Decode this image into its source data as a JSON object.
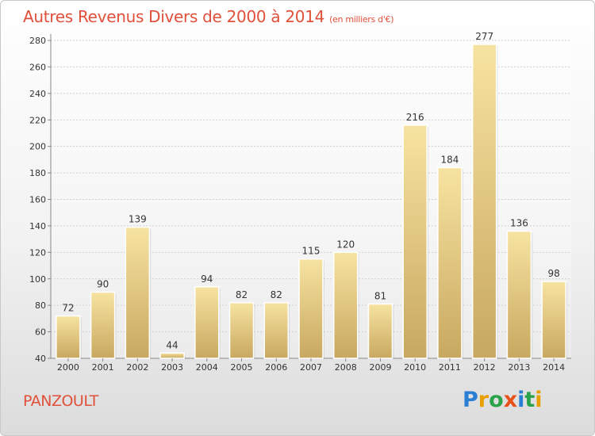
{
  "title": {
    "main": "Autres Revenus Divers de 2000 à 2014",
    "unit": "(en milliers d'€)"
  },
  "place": "PANZOULT",
  "logo": {
    "letters": [
      {
        "ch": "P",
        "color": "#2a7fd4"
      },
      {
        "ch": "r",
        "color": "#e8a000"
      },
      {
        "ch": "o",
        "color": "#2aa34a"
      },
      {
        "ch": "x",
        "color": "#e8501a"
      },
      {
        "ch": "i",
        "color": "#2a7fd4"
      },
      {
        "ch": "t",
        "color": "#2aa34a"
      },
      {
        "ch": "i",
        "color": "#e8a000"
      }
    ]
  },
  "colors": {
    "title": "#e0503a",
    "bar_top": "#f7e3a1",
    "bar_bottom": "#c8a860",
    "grid": "#cfcfcf"
  },
  "chart_data": {
    "type": "bar",
    "categories": [
      "2000",
      "2001",
      "2002",
      "2003",
      "2004",
      "2005",
      "2006",
      "2007",
      "2008",
      "2009",
      "2010",
      "2011",
      "2012",
      "2013",
      "2014"
    ],
    "values": [
      72,
      90,
      139,
      44,
      94,
      82,
      82,
      115,
      120,
      81,
      216,
      184,
      277,
      136,
      98
    ],
    "title": "Autres Revenus Divers de 2000 à 2014",
    "subtitle": "(en milliers d'€)",
    "xlabel": "",
    "ylabel": "",
    "ylim": [
      40,
      280
    ],
    "yticks": [
      40,
      60,
      80,
      100,
      120,
      140,
      160,
      180,
      200,
      220,
      240,
      260,
      280
    ],
    "grid": true,
    "legend": "none"
  }
}
